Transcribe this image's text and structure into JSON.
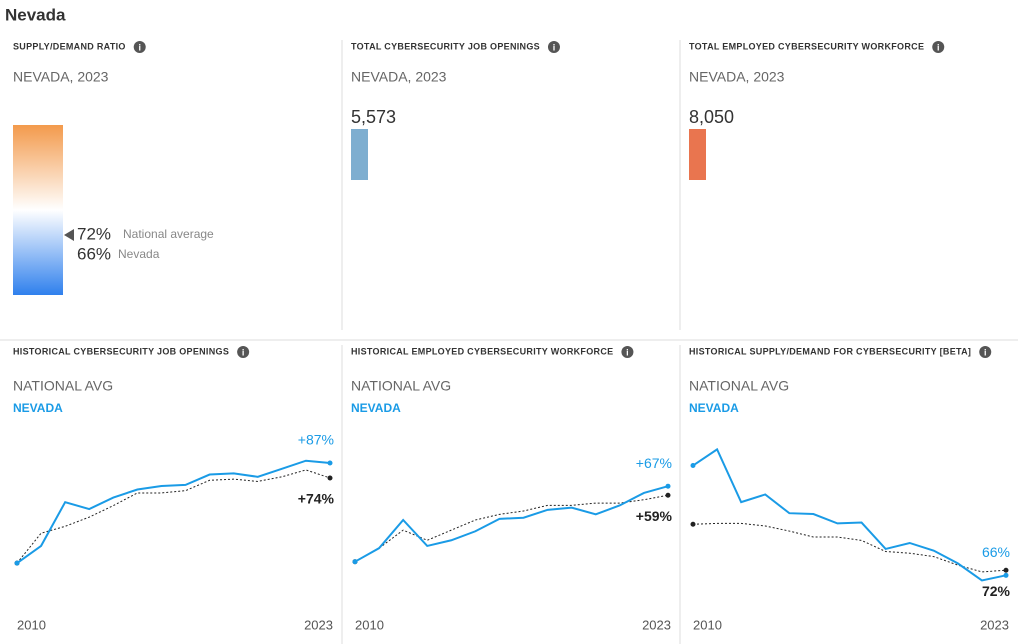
{
  "page_title": "Nevada",
  "chart_data": [
    {
      "type": "gauge",
      "title": "SUPPLY/DEMAND RATIO",
      "subtitle": "NEVADA, 2023",
      "ylim": [
        54,
        105
      ],
      "colors": [
        "#f39a4c",
        "#ffffff",
        "#2f80ed"
      ],
      "categories": [
        "National average",
        "Nevada"
      ],
      "values": [
        72,
        66
      ],
      "value_labels": [
        "72%",
        "66%"
      ]
    },
    {
      "type": "bar",
      "title": "TOTAL CYBERSECURITY JOB OPENINGS",
      "subtitle": "NEVADA, 2023",
      "values": [
        5573
      ],
      "value_labels": [
        "5,573"
      ],
      "color": "#7eaed0"
    },
    {
      "type": "bar",
      "title": "TOTAL EMPLOYED CYBERSECURITY WORKFORCE",
      "subtitle": "NEVADA, 2023",
      "values": [
        8050
      ],
      "value_labels": [
        "8,050"
      ],
      "color": "#e9754f"
    },
    {
      "type": "line",
      "title": "HISTORICAL CYBERSECURITY JOB OPENINGS",
      "x": [
        2010,
        2011,
        2012,
        2013,
        2014,
        2015,
        2016,
        2017,
        2018,
        2019,
        2020,
        2021,
        2022,
        2023
      ],
      "xlim": [
        2010,
        2023
      ],
      "xticks": [
        2010,
        2023
      ],
      "ylim": [
        -32,
        107
      ],
      "series": [
        {
          "name": "NATIONAL AVG",
          "color": "#222222",
          "values": [
            0,
            26,
            32,
            40,
            50,
            61,
            61,
            63,
            72,
            73,
            71,
            75,
            81,
            74
          ],
          "value_labels": [
            null,
            null,
            null,
            null,
            null,
            null,
            null,
            null,
            null,
            null,
            null,
            null,
            null,
            "+74%"
          ]
        },
        {
          "name": "NEVADA",
          "color": "#1a9be6",
          "values": [
            0,
            15,
            53,
            47,
            57,
            64,
            67,
            68,
            77,
            78,
            75,
            82,
            89,
            87
          ],
          "value_labels": [
            null,
            null,
            null,
            null,
            null,
            null,
            null,
            null,
            null,
            null,
            null,
            null,
            null,
            "+87%"
          ]
        }
      ]
    },
    {
      "type": "line",
      "title": "HISTORICAL EMPLOYED CYBERSECURITY WORKFORCE",
      "x": [
        2010,
        2011,
        2012,
        2013,
        2014,
        2015,
        2016,
        2017,
        2018,
        2019,
        2020,
        2021,
        2022,
        2023
      ],
      "xlim": [
        2010,
        2023
      ],
      "xticks": [
        2010,
        2023
      ],
      "ylim": [
        -34,
        108
      ],
      "series": [
        {
          "name": "NATIONAL AVG",
          "color": "#222222",
          "values": [
            0,
            12,
            28,
            19,
            28,
            37,
            42,
            45,
            50,
            50,
            52,
            52,
            55,
            59
          ],
          "value_labels": [
            null,
            null,
            null,
            null,
            null,
            null,
            null,
            null,
            null,
            null,
            null,
            null,
            null,
            "+59%"
          ]
        },
        {
          "name": "NEVADA",
          "color": "#1a9be6",
          "values": [
            0,
            12,
            37,
            14,
            19,
            27,
            38,
            39,
            46,
            48,
            42,
            50,
            61,
            67
          ],
          "value_labels": [
            null,
            null,
            null,
            null,
            null,
            null,
            null,
            null,
            null,
            null,
            null,
            null,
            null,
            "+67%"
          ]
        }
      ]
    },
    {
      "type": "line",
      "title": "HISTORICAL SUPPLY/DEMAND FOR CYBERSECURITY [BETA]",
      "x": [
        2010,
        2011,
        2012,
        2013,
        2014,
        2015,
        2016,
        2017,
        2018,
        2019,
        2020,
        2021,
        2022,
        2023
      ],
      "xlim": [
        2010,
        2023
      ],
      "xticks": [
        2010,
        2023
      ],
      "ylim": [
        37,
        225
      ],
      "series": [
        {
          "name": "NATIONAL AVG",
          "color": "#222222",
          "values": [
            126,
            127,
            127,
            124,
            118,
            111,
            111,
            107,
            94,
            92,
            88,
            78,
            70,
            72
          ],
          "value_labels": [
            null,
            null,
            null,
            null,
            null,
            null,
            null,
            null,
            null,
            null,
            null,
            null,
            null,
            "72%"
          ]
        },
        {
          "name": "NEVADA",
          "color": "#1a9be6",
          "values": [
            195,
            214,
            152,
            161,
            139,
            138,
            127,
            128,
            97,
            104,
            95,
            80,
            60,
            66
          ],
          "value_labels": [
            null,
            null,
            null,
            null,
            null,
            null,
            null,
            null,
            null,
            null,
            null,
            null,
            null,
            "66%"
          ]
        }
      ]
    }
  ]
}
